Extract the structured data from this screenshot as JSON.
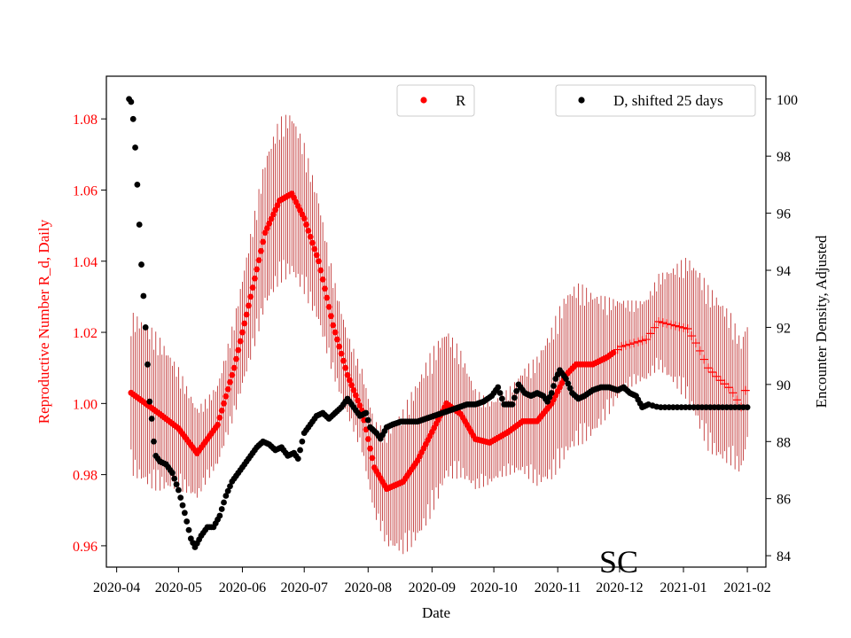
{
  "colors": {
    "r_series": "#ff0000",
    "errorbar": "#b00000",
    "d_series": "#000000",
    "axis": "#000000",
    "left_axis_text": "#ff0000"
  },
  "chart_data": {
    "type": "scatter",
    "annotation": "SC",
    "xlabel": "Date",
    "ylabel_left": "Reproductive Number R_d, Daily",
    "ylabel_right": "Encounter Density, Adjusted",
    "xlim": [
      "2020-03-27",
      "2021-02-10"
    ],
    "ylim_left": [
      0.954,
      1.092
    ],
    "ylim_right": [
      83.6,
      100.8
    ],
    "x_ticks": [
      "2020-04",
      "2020-05",
      "2020-06",
      "2020-07",
      "2020-08",
      "2020-09",
      "2020-10",
      "2020-11",
      "2020-12",
      "2021-01",
      "2021-02"
    ],
    "y_ticks_left": [
      "0.96",
      "0.98",
      "1.00",
      "1.02",
      "1.04",
      "1.06",
      "1.08"
    ],
    "y_ticks_right": [
      "84",
      "86",
      "88",
      "90",
      "92",
      "94",
      "96",
      "98",
      "100"
    ],
    "legend": {
      "left": {
        "label": "R",
        "position": "top-center"
      },
      "right": {
        "label": "D, shifted 25 days",
        "position": "top-right"
      }
    },
    "series": [
      {
        "name": "R",
        "axis": "left",
        "marker": "dot",
        "errorbars": true,
        "points": [
          [
            "2020-04-08",
            1.003
          ],
          [
            "2020-04-15",
            1.0
          ],
          [
            "2020-04-22",
            0.997
          ],
          [
            "2020-05-01",
            0.993
          ],
          [
            "2020-05-10",
            0.986
          ],
          [
            "2020-05-20",
            0.994
          ],
          [
            "2020-05-28",
            1.01
          ],
          [
            "2020-06-05",
            1.03
          ],
          [
            "2020-06-12",
            1.048
          ],
          [
            "2020-06-19",
            1.057
          ],
          [
            "2020-06-25",
            1.059
          ],
          [
            "2020-07-01",
            1.052
          ],
          [
            "2020-07-08",
            1.04
          ],
          [
            "2020-07-15",
            1.022
          ],
          [
            "2020-07-22",
            1.008
          ],
          [
            "2020-07-29",
            0.998
          ],
          [
            "2020-08-04",
            0.982
          ],
          [
            "2020-08-10",
            0.976
          ],
          [
            "2020-08-18",
            0.978
          ],
          [
            "2020-08-25",
            0.984
          ],
          [
            "2020-09-01",
            0.992
          ],
          [
            "2020-09-08",
            1.0
          ],
          [
            "2020-09-15",
            0.997
          ],
          [
            "2020-09-22",
            0.99
          ],
          [
            "2020-09-29",
            0.989
          ],
          [
            "2020-10-08",
            0.992
          ],
          [
            "2020-10-15",
            0.995
          ],
          [
            "2020-10-22",
            0.995
          ],
          [
            "2020-10-29",
            1.0
          ],
          [
            "2020-11-05",
            1.008
          ],
          [
            "2020-11-10",
            1.011
          ],
          [
            "2020-11-18",
            1.011
          ],
          [
            "2020-11-25",
            1.013
          ],
          [
            "2020-12-02",
            1.016
          ],
          [
            "2020-12-08",
            1.017
          ],
          [
            "2020-12-14",
            1.018
          ],
          [
            "2020-12-20",
            1.023
          ],
          [
            "2020-12-27",
            1.022
          ],
          [
            "2021-01-03",
            1.021
          ],
          [
            "2021-01-08",
            1.016
          ],
          [
            "2021-01-13",
            1.01
          ],
          [
            "2021-01-18",
            1.007
          ],
          [
            "2021-01-24",
            1.004
          ],
          [
            "2021-01-29",
            0.999
          ],
          [
            "2021-02-01",
            1.006
          ]
        ]
      },
      {
        "name": "D, shifted 25 days",
        "axis": "right",
        "marker": "dot",
        "points": [
          [
            "2020-04-07",
            100.0
          ],
          [
            "2020-04-08",
            99.9
          ],
          [
            "2020-04-09",
            99.3
          ],
          [
            "2020-04-10",
            98.3
          ],
          [
            "2020-04-11",
            97.0
          ],
          [
            "2020-04-12",
            95.6
          ],
          [
            "2020-04-13",
            94.2
          ],
          [
            "2020-04-14",
            93.1
          ],
          [
            "2020-04-15",
            92.0
          ],
          [
            "2020-04-16",
            90.7
          ],
          [
            "2020-04-17",
            89.4
          ],
          [
            "2020-04-18",
            88.8
          ],
          [
            "2020-04-19",
            88.0
          ],
          [
            "2020-04-20",
            87.5
          ],
          [
            "2020-04-22",
            87.3
          ],
          [
            "2020-04-25",
            87.2
          ],
          [
            "2020-04-28",
            86.9
          ],
          [
            "2020-05-01",
            86.3
          ],
          [
            "2020-05-04",
            85.5
          ],
          [
            "2020-05-07",
            84.6
          ],
          [
            "2020-05-09",
            84.3
          ],
          [
            "2020-05-12",
            84.7
          ],
          [
            "2020-05-15",
            85.0
          ],
          [
            "2020-05-18",
            85.0
          ],
          [
            "2020-05-21",
            85.4
          ],
          [
            "2020-05-24",
            86.1
          ],
          [
            "2020-05-27",
            86.6
          ],
          [
            "2020-05-30",
            86.9
          ],
          [
            "2020-06-02",
            87.2
          ],
          [
            "2020-06-05",
            87.5
          ],
          [
            "2020-06-08",
            87.8
          ],
          [
            "2020-06-11",
            88.0
          ],
          [
            "2020-06-14",
            87.9
          ],
          [
            "2020-06-17",
            87.7
          ],
          [
            "2020-06-20",
            87.8
          ],
          [
            "2020-06-23",
            87.5
          ],
          [
            "2020-06-26",
            87.6
          ],
          [
            "2020-06-28",
            87.4
          ],
          [
            "2020-07-01",
            88.3
          ],
          [
            "2020-07-04",
            88.6
          ],
          [
            "2020-07-07",
            88.9
          ],
          [
            "2020-07-10",
            89.0
          ],
          [
            "2020-07-13",
            88.8
          ],
          [
            "2020-07-16",
            89.0
          ],
          [
            "2020-07-19",
            89.2
          ],
          [
            "2020-07-22",
            89.5
          ],
          [
            "2020-07-25",
            89.2
          ],
          [
            "2020-07-28",
            88.9
          ],
          [
            "2020-07-31",
            89.0
          ],
          [
            "2020-08-02",
            88.5
          ],
          [
            "2020-08-05",
            88.3
          ],
          [
            "2020-08-07",
            88.1
          ],
          [
            "2020-08-10",
            88.5
          ],
          [
            "2020-08-13",
            88.6
          ],
          [
            "2020-08-17",
            88.7
          ],
          [
            "2020-08-21",
            88.7
          ],
          [
            "2020-08-25",
            88.7
          ],
          [
            "2020-08-29",
            88.8
          ],
          [
            "2020-09-02",
            88.9
          ],
          [
            "2020-09-06",
            89.0
          ],
          [
            "2020-09-10",
            89.1
          ],
          [
            "2020-09-14",
            89.2
          ],
          [
            "2020-09-18",
            89.3
          ],
          [
            "2020-09-22",
            89.3
          ],
          [
            "2020-09-26",
            89.4
          ],
          [
            "2020-09-30",
            89.6
          ],
          [
            "2020-10-03",
            89.9
          ],
          [
            "2020-10-06",
            89.3
          ],
          [
            "2020-10-10",
            89.3
          ],
          [
            "2020-10-13",
            90.0
          ],
          [
            "2020-10-16",
            89.7
          ],
          [
            "2020-10-19",
            89.6
          ],
          [
            "2020-10-22",
            89.7
          ],
          [
            "2020-10-25",
            89.6
          ],
          [
            "2020-10-27",
            89.4
          ],
          [
            "2020-10-29",
            89.7
          ],
          [
            "2020-10-31",
            90.2
          ],
          [
            "2020-11-02",
            90.5
          ],
          [
            "2020-11-05",
            90.2
          ],
          [
            "2020-11-08",
            89.7
          ],
          [
            "2020-11-11",
            89.5
          ],
          [
            "2020-11-14",
            89.6
          ],
          [
            "2020-11-18",
            89.8
          ],
          [
            "2020-11-22",
            89.9
          ],
          [
            "2020-11-26",
            89.9
          ],
          [
            "2020-11-30",
            89.8
          ],
          [
            "2020-12-03",
            89.9
          ],
          [
            "2020-12-06",
            89.7
          ],
          [
            "2020-12-09",
            89.6
          ],
          [
            "2020-12-12",
            89.2
          ],
          [
            "2020-12-15",
            89.3
          ],
          [
            "2020-12-20",
            89.2
          ],
          [
            "2020-12-27",
            89.2
          ],
          [
            "2021-01-05",
            89.2
          ],
          [
            "2021-01-15",
            89.2
          ],
          [
            "2021-01-25",
            89.2
          ],
          [
            "2021-02-01",
            89.2
          ]
        ]
      }
    ]
  }
}
